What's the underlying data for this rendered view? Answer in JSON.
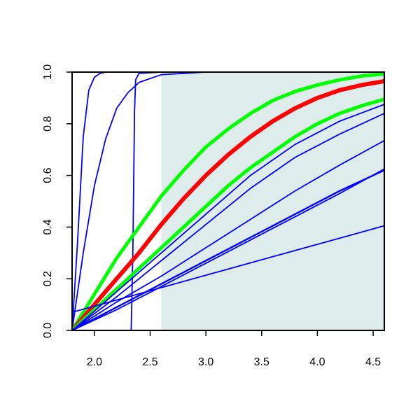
{
  "chart_data": {
    "type": "line",
    "title": "",
    "xlabel": "",
    "ylabel": "",
    "xlim": [
      1.8,
      4.6
    ],
    "ylim": [
      0.0,
      1.0
    ],
    "x_ticks": [
      2.0,
      2.5,
      3.0,
      3.5,
      4.0,
      4.5
    ],
    "x_tick_labels": [
      "2.0",
      "2.5",
      "3.0",
      "3.5",
      "4.0",
      "4.5"
    ],
    "y_ticks": [
      0.0,
      0.2,
      0.4,
      0.6,
      0.8,
      1.0
    ],
    "y_tick_labels": [
      "0.0",
      "0.2",
      "0.4",
      "0.6",
      "0.8",
      "1.0"
    ],
    "grid": false,
    "legend": "none",
    "shaded_region": {
      "x": [
        2.6,
        4.6
      ],
      "y": [
        0.0,
        1.0
      ],
      "color": "#dfecec"
    },
    "series": [
      {
        "color": "#0000ff",
        "width": 1.8,
        "x": [
          1.8,
          1.85,
          1.9,
          1.95,
          2.0,
          2.05,
          2.1,
          4.6
        ],
        "y": [
          0.0,
          0.35,
          0.75,
          0.93,
          0.98,
          0.995,
          1.0,
          1.0
        ]
      },
      {
        "color": "#0000ff",
        "width": 1.8,
        "x": [
          1.8,
          1.9,
          2.0,
          2.1,
          2.2,
          2.3,
          2.4,
          2.6,
          3.0,
          4.6
        ],
        "y": [
          0.0,
          0.3,
          0.56,
          0.74,
          0.86,
          0.92,
          0.96,
          0.99,
          1.0,
          1.0
        ]
      },
      {
        "color": "#0000ff",
        "width": 1.8,
        "x": [
          1.8,
          2.33,
          2.345,
          2.36,
          2.37,
          2.4,
          2.6,
          4.6
        ],
        "y": [
          0.0,
          0.0,
          0.3,
          0.85,
          0.97,
          0.995,
          1.0,
          1.0
        ]
      },
      {
        "color": "#00ff00",
        "width": 5,
        "x": [
          1.8,
          2.0,
          2.2,
          2.4,
          2.6,
          2.8,
          3.0,
          3.2,
          3.4,
          3.6,
          3.8,
          4.0,
          4.2,
          4.4,
          4.6
        ],
        "y": [
          0.0,
          0.14,
          0.28,
          0.4,
          0.52,
          0.62,
          0.71,
          0.78,
          0.84,
          0.89,
          0.925,
          0.95,
          0.97,
          0.985,
          0.993
        ]
      },
      {
        "color": "#ff0000",
        "width": 6,
        "x": [
          1.8,
          2.0,
          2.2,
          2.4,
          2.6,
          2.8,
          3.0,
          3.2,
          3.4,
          3.6,
          3.8,
          4.0,
          4.2,
          4.4,
          4.6
        ],
        "y": [
          0.0,
          0.1,
          0.2,
          0.3,
          0.41,
          0.51,
          0.6,
          0.68,
          0.75,
          0.81,
          0.86,
          0.9,
          0.93,
          0.95,
          0.965
        ]
      },
      {
        "color": "#00ff00",
        "width": 5,
        "x": [
          1.8,
          2.0,
          2.2,
          2.4,
          2.6,
          2.8,
          3.0,
          3.2,
          3.4,
          3.6,
          3.8,
          4.0,
          4.2,
          4.4,
          4.6
        ],
        "y": [
          0.0,
          0.08,
          0.16,
          0.24,
          0.32,
          0.4,
          0.48,
          0.56,
          0.63,
          0.69,
          0.75,
          0.8,
          0.84,
          0.87,
          0.895
        ]
      },
      {
        "color": "#0000ff",
        "width": 1.8,
        "x": [
          1.8,
          2.2,
          2.6,
          3.0,
          3.4,
          3.8,
          4.2,
          4.6
        ],
        "y": [
          0.0,
          0.15,
          0.3,
          0.45,
          0.6,
          0.72,
          0.81,
          0.875
        ]
      },
      {
        "color": "#0000ff",
        "width": 1.8,
        "x": [
          1.8,
          2.2,
          2.6,
          3.0,
          3.4,
          3.8,
          4.2,
          4.6
        ],
        "y": [
          0.0,
          0.13,
          0.27,
          0.41,
          0.55,
          0.67,
          0.76,
          0.84
        ]
      },
      {
        "color": "#0000ff",
        "width": 1.8,
        "x": [
          1.8,
          2.2,
          2.6,
          3.0,
          3.4,
          3.8,
          4.2,
          4.6
        ],
        "y": [
          0.0,
          0.11,
          0.21,
          0.32,
          0.43,
          0.54,
          0.64,
          0.735
        ]
      },
      {
        "color": "#0000ff",
        "width": 2.4,
        "x": [
          1.8,
          2.2,
          2.6,
          3.0,
          3.4,
          3.8,
          4.2,
          4.6
        ],
        "y": [
          0.0,
          0.09,
          0.18,
          0.27,
          0.36,
          0.45,
          0.54,
          0.62
        ]
      },
      {
        "color": "#0000ff",
        "width": 1.8,
        "x": [
          1.8,
          2.2,
          2.6,
          3.0,
          3.4,
          3.8,
          4.2,
          4.6
        ],
        "y": [
          0.0,
          0.08,
          0.17,
          0.26,
          0.35,
          0.44,
          0.53,
          0.625
        ]
      },
      {
        "color": "#0000ff",
        "width": 1.8,
        "x": [
          1.8,
          4.6
        ],
        "y": [
          0.07,
          0.405
        ]
      }
    ]
  }
}
